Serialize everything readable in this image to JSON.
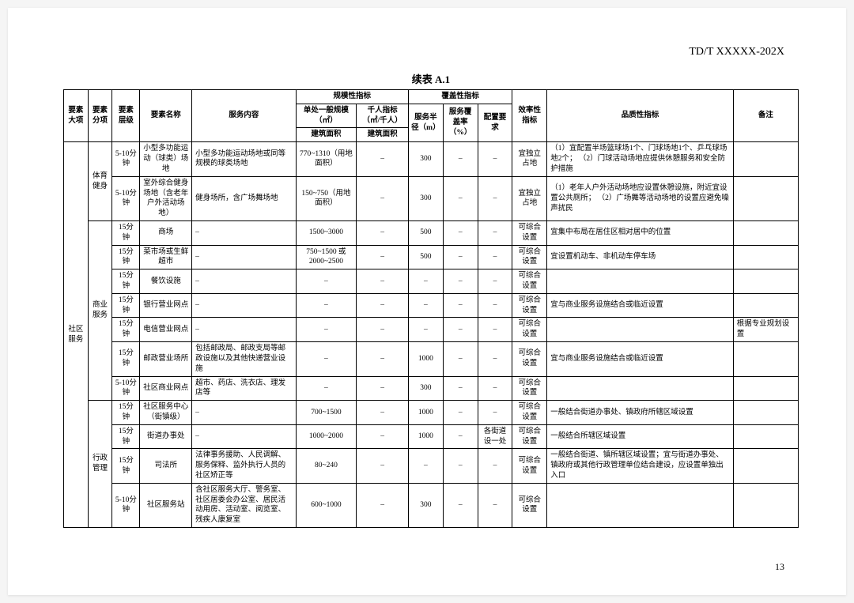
{
  "header": {
    "doc_id": "TD/T  XXXXX-202X",
    "title": "续表 A.1",
    "page_num": "13"
  },
  "thead": {
    "c1": "要素大项",
    "c2": "要素分项",
    "c3": "要素层级",
    "c4": "要素名称",
    "c5": "服务内容",
    "g1": "规模性指标",
    "g2": "覆盖性指标",
    "c6": "单处一般规模（㎡）",
    "c7": "千人指标（㎡/千人）",
    "c6b": "建筑面积",
    "c7b": "建筑面积",
    "c8": "服务半径（m）",
    "c9": "服务覆盖率（%）",
    "c10": "配置要求",
    "c11": "效率性指标",
    "c12": "品质性指标",
    "c13": "备注"
  },
  "rows": [
    {
      "lvl": "5-10分钟",
      "name": "小型多功能运动（球类）场地",
      "svc": "小型多功能运动场地或同等规模的球类场地",
      "scale": "770~1310（用地面积）",
      "kpi": "–",
      "radius": "300",
      "cover": "–",
      "req": "–",
      "eff": "宜独立占地",
      "quality": "（1）宜配置半场篮球场1个、门球场地1个、乒乓球场地2个；\n（2）门球活动场地应提供休憩服务和安全防护措施",
      "note": ""
    },
    {
      "lvl": "5-10分钟",
      "name": "室外综合健身场地（含老年户外活动场地）",
      "svc": "健身场所，含广场舞场地",
      "scale": "150~750（用地面积）",
      "kpi": "–",
      "radius": "300",
      "cover": "–",
      "req": "–",
      "eff": "宜独立占地",
      "quality": "（1）老年人户外活动场地应设置休憩设施，附近宜设置公共厕所；\n（2）广场舞等活动场地的设置应避免噪声扰民",
      "note": ""
    },
    {
      "lvl": "15分钟",
      "name": "商场",
      "svc": "–",
      "scale": "1500~3000",
      "kpi": "–",
      "radius": "500",
      "cover": "–",
      "req": "–",
      "eff": "可综合设置",
      "quality": "宜集中布局在居住区相对居中的位置",
      "note": ""
    },
    {
      "lvl": "15分钟",
      "name": "菜市场或生鲜超市",
      "svc": "–",
      "scale": "750~1500 或 2000~2500",
      "kpi": "–",
      "radius": "500",
      "cover": "–",
      "req": "–",
      "eff": "可综合设置",
      "quality": "宜设置机动车、非机动车停车场",
      "note": ""
    },
    {
      "lvl": "15分钟",
      "name": "餐饮设施",
      "svc": "–",
      "scale": "–",
      "kpi": "–",
      "radius": "–",
      "cover": "–",
      "req": "–",
      "eff": "可综合设置",
      "quality": "",
      "note": ""
    },
    {
      "lvl": "15分钟",
      "name": "银行营业网点",
      "svc": "–",
      "scale": "–",
      "kpi": "–",
      "radius": "–",
      "cover": "–",
      "req": "–",
      "eff": "可综合设置",
      "quality": "宜与商业服务设施结合或临近设置",
      "note": ""
    },
    {
      "lvl": "15分钟",
      "name": "电信营业网点",
      "svc": "–",
      "scale": "–",
      "kpi": "–",
      "radius": "–",
      "cover": "–",
      "req": "–",
      "eff": "可综合设置",
      "quality": "",
      "note": "根据专业规划设置"
    },
    {
      "lvl": "15分钟",
      "name": "邮政营业场所",
      "svc": "包括邮政局、邮政支局等邮政设施以及其他快递营业设施",
      "scale": "–",
      "kpi": "–",
      "radius": "1000",
      "cover": "–",
      "req": "–",
      "eff": "可综合设置",
      "quality": "宜与商业服务设施结合或临近设置",
      "note": ""
    },
    {
      "lvl": "5-10分钟",
      "name": "社区商业网点",
      "svc": "超市、药店、洗衣店、理发店等",
      "scale": "–",
      "kpi": "–",
      "radius": "300",
      "cover": "–",
      "req": "–",
      "eff": "可综合设置",
      "quality": "",
      "note": ""
    },
    {
      "lvl": "15分钟",
      "name": "社区服务中心（街镇级）",
      "svc": "–",
      "scale": "700~1500",
      "kpi": "–",
      "radius": "1000",
      "cover": "–",
      "req": "–",
      "eff": "可综合设置",
      "quality": "一般结合街道办事处、镇政府所辖区域设置",
      "note": ""
    },
    {
      "lvl": "15分钟",
      "name": "街道办事处",
      "svc": "–",
      "scale": "1000~2000",
      "kpi": "–",
      "radius": "1000",
      "cover": "–",
      "req": "各街道设一处",
      "eff": "可综合设置",
      "quality": "一般结合所辖区域设置",
      "note": ""
    },
    {
      "lvl": "15分钟",
      "name": "司法所",
      "svc": "法律事务援助、人民调解、服务保释、监外执行人员的社区矫正等",
      "scale": "80~240",
      "kpi": "–",
      "radius": "–",
      "cover": "–",
      "req": "–",
      "eff": "可综合设置",
      "quality": "一般结合街道、镇所辖区域设置；宜与街道办事处、镇政府或其他行政管理单位结合建设，应设置单独出入口",
      "note": ""
    },
    {
      "lvl": "5-10分钟",
      "name": "社区服务站",
      "svc": "含社区服务大厅、警务室、社区居委会办公室、居民活动用房、活动室、阅览室、残疾人康复室",
      "scale": "600~1000",
      "kpi": "–",
      "radius": "300",
      "cover": "–",
      "req": "–",
      "eff": "可综合设置",
      "quality": "",
      "note": ""
    }
  ],
  "groups": {
    "major": "社区服务",
    "sub_sport": "体育健身",
    "sub_biz": "商业服务",
    "sub_admin": "行政管理"
  }
}
